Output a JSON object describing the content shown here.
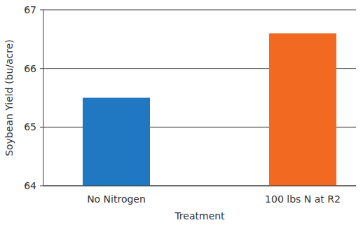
{
  "chart_data": {
    "type": "bar",
    "categories": [
      "No Nitrogen",
      "100 lbs N at R2"
    ],
    "values": [
      65.5,
      66.6
    ],
    "colors": [
      "#1f78c1",
      "#f26a22"
    ],
    "x_label": "Treatment",
    "y_label": "Soybean Yield (bu/acre)",
    "ylim": [
      64,
      67
    ],
    "yticks": [
      64,
      65,
      66,
      67
    ],
    "grid": true
  }
}
